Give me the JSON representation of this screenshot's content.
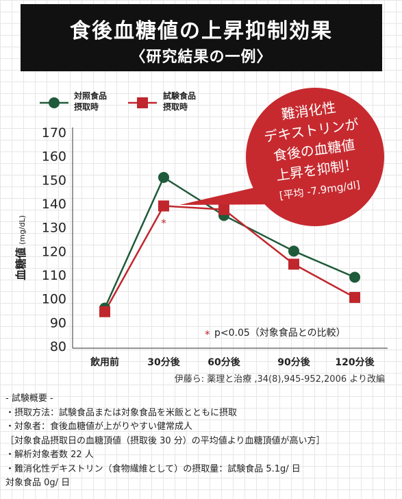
{
  "title": "食後血糖値の上昇抑制効果",
  "subtitle": "〈研究結果の一例〉",
  "colors": {
    "control": "#1f5a3a",
    "test": "#c0272d",
    "bubble": "#c62a2f",
    "banner": "#111111"
  },
  "chart_data": {
    "type": "line",
    "categories": [
      "飲用前",
      "30分後",
      "60分後",
      "90分後",
      "120分後"
    ],
    "series": [
      {
        "name": "対照食品 摂取時",
        "label_lines": [
          "対照食品",
          "摂取時"
        ],
        "marker": "circle",
        "values": [
          96,
          151,
          135,
          120,
          109
        ]
      },
      {
        "name": "試験食品 摂取時",
        "label_lines": [
          "試験食品",
          "摂取時"
        ],
        "marker": "square",
        "values": [
          94.5,
          139,
          137.5,
          114.5,
          100.5
        ]
      }
    ],
    "ylabel": "血糖値",
    "ylabel_unit": "(mg/dL)",
    "ylim": [
      80,
      170
    ],
    "yticks": [
      80,
      90,
      100,
      110,
      120,
      130,
      140,
      150,
      160,
      170
    ],
    "legend_position": "top-left",
    "significance_marker": {
      "category_index": 1,
      "symbol": "*"
    },
    "annotation": "* p<0.05（対象食品との比較）",
    "annotation_star": "*",
    "annotation_text": "p<0.05（対象食品との比較）",
    "callout": {
      "lines": [
        "難消化性",
        "デキストリンが",
        "食後の血糖値",
        "上昇を抑制！",
        "[平均 -7.9mg/dl]"
      ]
    },
    "source": "伊藤ら: 薬理と治療 ,34(8),945-952,2006 より改編"
  },
  "notes": [
    "- 試験概要 -",
    "・摂取方法：試験食品または対象食品を米飯とともに摂取",
    "・対象者：食後血糖値が上がりやすい健常成人",
    "［対象食品摂取日の血糖頂値（摂取後 30 分）の平均値より血糖頂値が高い方］",
    "・解析対象者数 22 人",
    "・難消化性デキストリン（食物繊維として）の摂取量：試験食品 5.1g/ 日",
    "対象食品 0g/ 日"
  ]
}
